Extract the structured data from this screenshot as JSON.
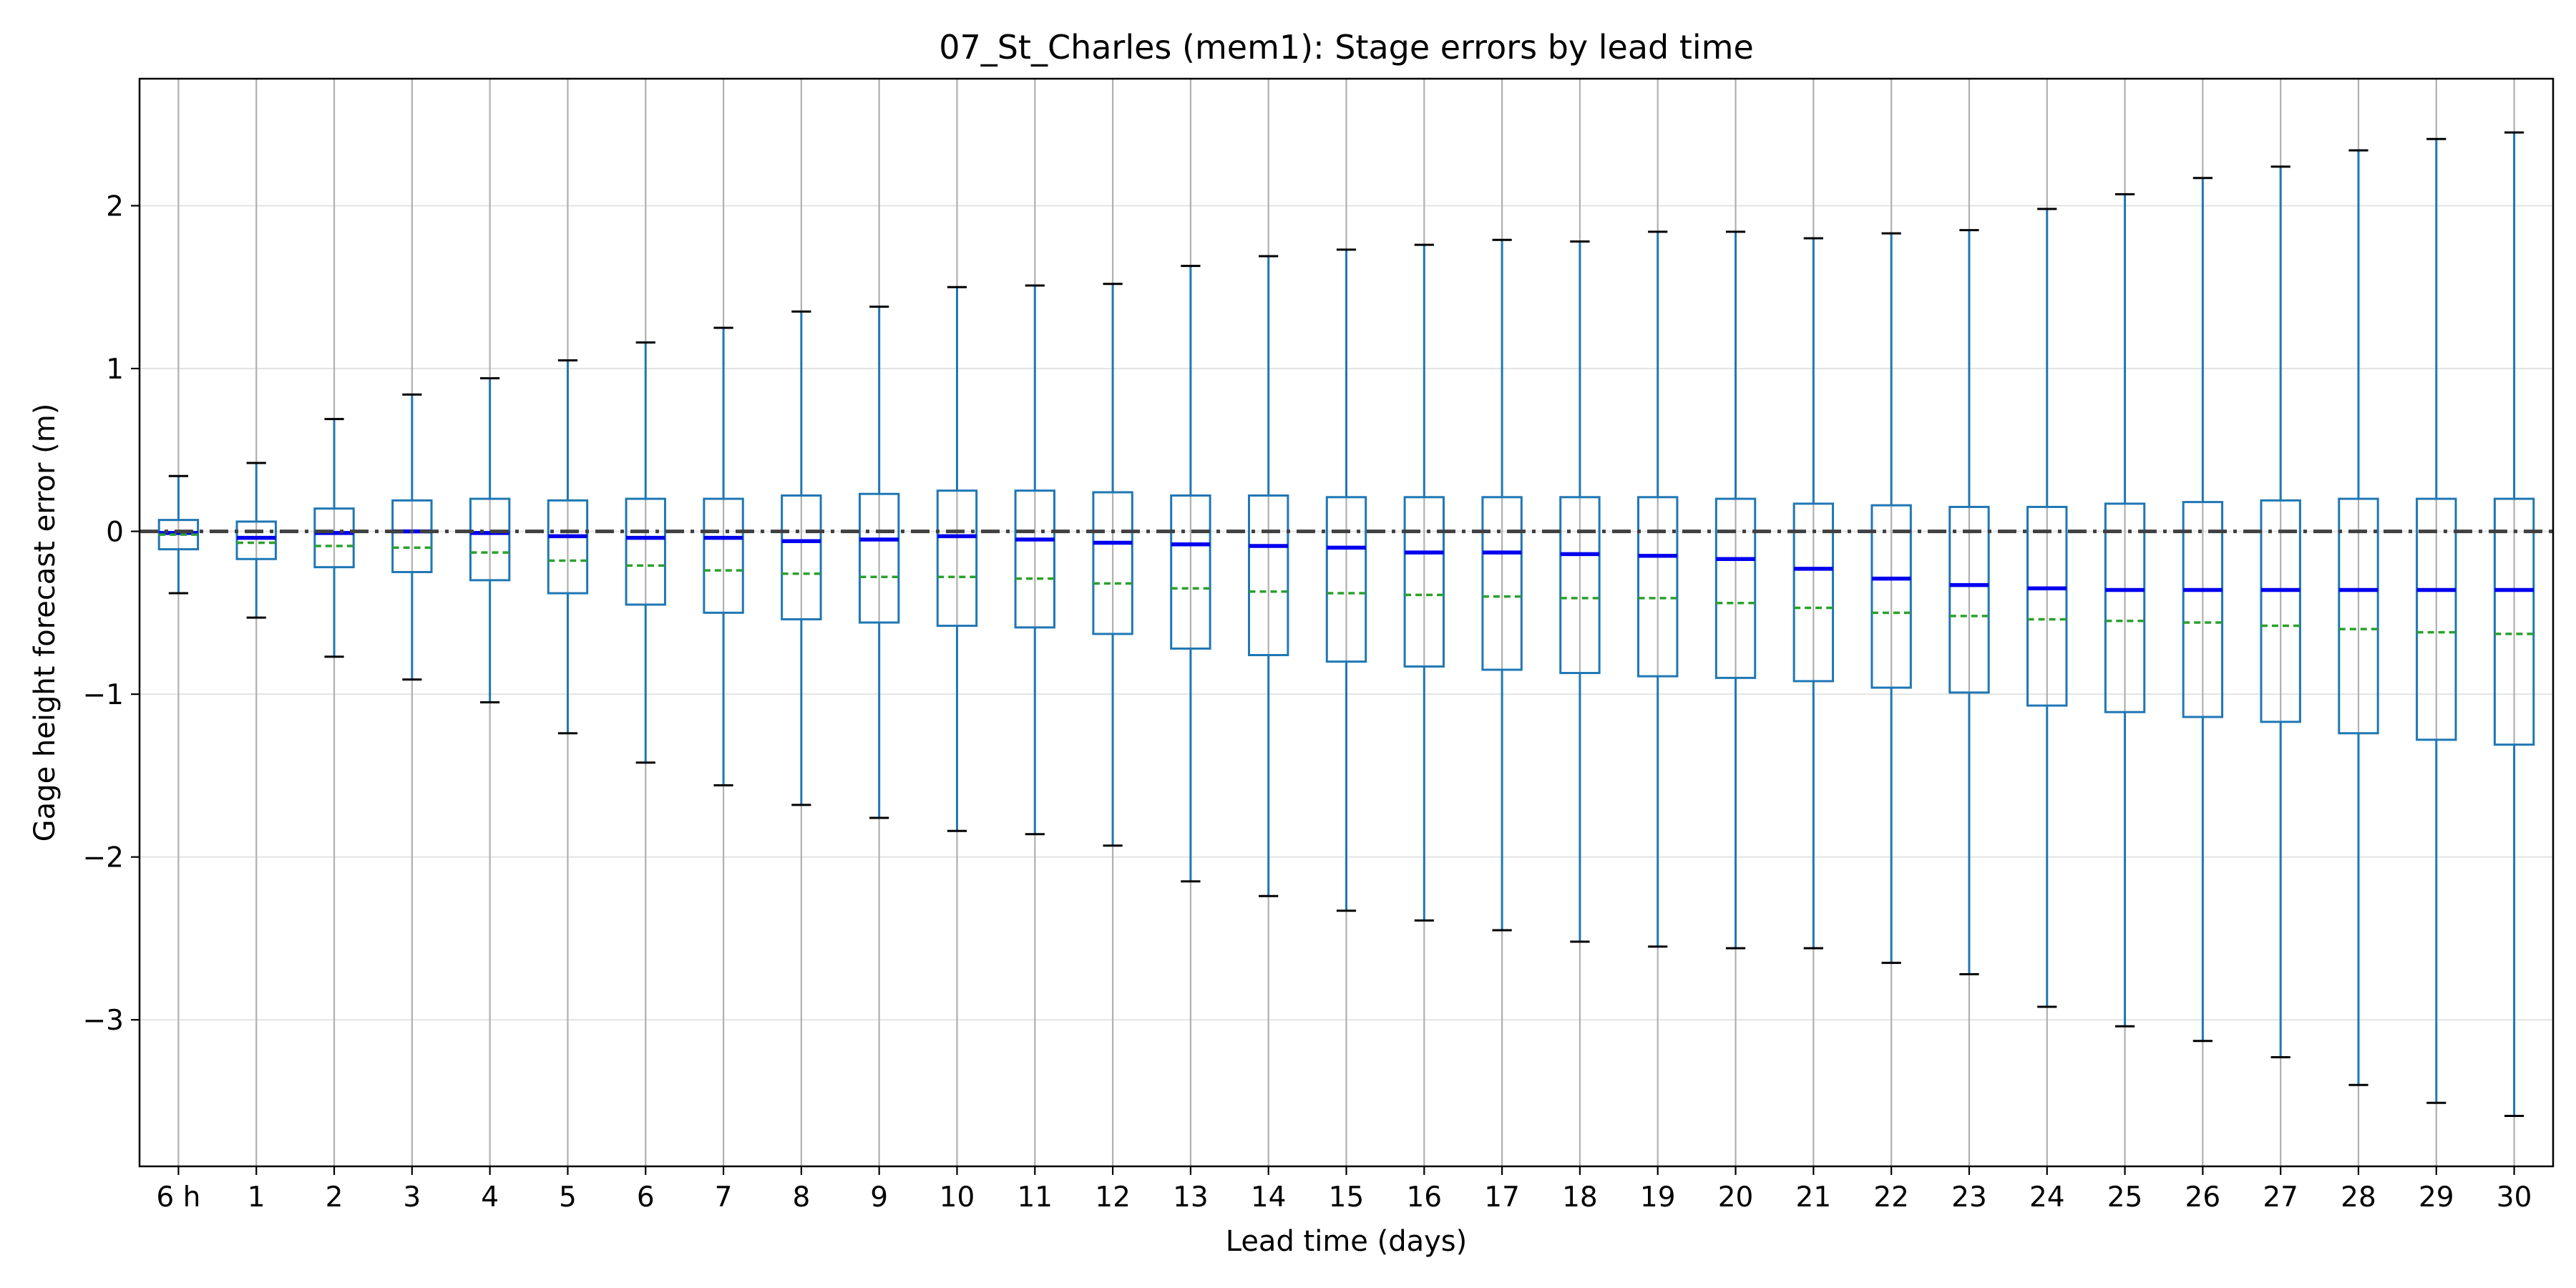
{
  "chart_data": {
    "type": "box",
    "title": "07_St_Charles (mem1): Stage errors by lead time",
    "xlabel": "Lead time (days)",
    "ylabel": "Gage height forecast error (m)",
    "ylim": [
      -3.9,
      2.78
    ],
    "yticks": [
      -3,
      -2,
      -1,
      0,
      1,
      2
    ],
    "ytick_labels": [
      "−3",
      "−2",
      "−1",
      "0",
      "1",
      "2"
    ],
    "grid": {
      "vertical": true,
      "horizontal": true
    },
    "reference_line": {
      "y": 0,
      "style": "dash-dot",
      "color": "#404040"
    },
    "categories": [
      "6 h",
      "1",
      "2",
      "3",
      "4",
      "5",
      "6",
      "7",
      "8",
      "9",
      "10",
      "11",
      "12",
      "13",
      "14",
      "15",
      "16",
      "17",
      "18",
      "19",
      "20",
      "21",
      "22",
      "23",
      "24",
      "25",
      "26",
      "27",
      "28",
      "29",
      "30"
    ],
    "boxes": [
      {
        "whislo": -0.38,
        "q1": -0.11,
        "med": -0.01,
        "mean": -0.02,
        "q3": 0.07,
        "whishi": 0.34
      },
      {
        "whislo": -0.53,
        "q1": -0.17,
        "med": -0.04,
        "mean": -0.07,
        "q3": 0.06,
        "whishi": 0.42
      },
      {
        "whislo": -0.77,
        "q1": -0.22,
        "med": -0.01,
        "mean": -0.09,
        "q3": 0.14,
        "whishi": 0.69
      },
      {
        "whislo": -0.91,
        "q1": -0.25,
        "med": 0.0,
        "mean": -0.1,
        "q3": 0.19,
        "whishi": 0.84
      },
      {
        "whislo": -1.05,
        "q1": -0.3,
        "med": -0.01,
        "mean": -0.13,
        "q3": 0.2,
        "whishi": 0.94
      },
      {
        "whislo": -1.24,
        "q1": -0.38,
        "med": -0.03,
        "mean": -0.18,
        "q3": 0.19,
        "whishi": 1.05
      },
      {
        "whislo": -1.42,
        "q1": -0.45,
        "med": -0.04,
        "mean": -0.21,
        "q3": 0.2,
        "whishi": 1.16
      },
      {
        "whislo": -1.56,
        "q1": -0.5,
        "med": -0.04,
        "mean": -0.24,
        "q3": 0.2,
        "whishi": 1.25
      },
      {
        "whislo": -1.68,
        "q1": -0.54,
        "med": -0.06,
        "mean": -0.26,
        "q3": 0.22,
        "whishi": 1.35
      },
      {
        "whislo": -1.76,
        "q1": -0.56,
        "med": -0.05,
        "mean": -0.28,
        "q3": 0.23,
        "whishi": 1.38
      },
      {
        "whislo": -1.84,
        "q1": -0.58,
        "med": -0.03,
        "mean": -0.28,
        "q3": 0.25,
        "whishi": 1.5
      },
      {
        "whislo": -1.86,
        "q1": -0.59,
        "med": -0.05,
        "mean": -0.29,
        "q3": 0.25,
        "whishi": 1.51
      },
      {
        "whislo": -1.93,
        "q1": -0.63,
        "med": -0.07,
        "mean": -0.32,
        "q3": 0.24,
        "whishi": 1.52
      },
      {
        "whislo": -2.15,
        "q1": -0.72,
        "med": -0.08,
        "mean": -0.35,
        "q3": 0.22,
        "whishi": 1.63
      },
      {
        "whislo": -2.24,
        "q1": -0.76,
        "med": -0.09,
        "mean": -0.37,
        "q3": 0.22,
        "whishi": 1.69
      },
      {
        "whislo": -2.33,
        "q1": -0.8,
        "med": -0.1,
        "mean": -0.38,
        "q3": 0.21,
        "whishi": 1.73
      },
      {
        "whislo": -2.39,
        "q1": -0.83,
        "med": -0.13,
        "mean": -0.39,
        "q3": 0.21,
        "whishi": 1.76
      },
      {
        "whislo": -2.45,
        "q1": -0.85,
        "med": -0.13,
        "mean": -0.4,
        "q3": 0.21,
        "whishi": 1.79
      },
      {
        "whislo": -2.52,
        "q1": -0.87,
        "med": -0.14,
        "mean": -0.41,
        "q3": 0.21,
        "whishi": 1.78
      },
      {
        "whislo": -2.55,
        "q1": -0.89,
        "med": -0.15,
        "mean": -0.41,
        "q3": 0.21,
        "whishi": 1.84
      },
      {
        "whislo": -2.56,
        "q1": -0.9,
        "med": -0.17,
        "mean": -0.44,
        "q3": 0.2,
        "whishi": 1.84
      },
      {
        "whislo": -2.56,
        "q1": -0.92,
        "med": -0.23,
        "mean": -0.47,
        "q3": 0.17,
        "whishi": 1.8
      },
      {
        "whislo": -2.65,
        "q1": -0.96,
        "med": -0.29,
        "mean": -0.5,
        "q3": 0.16,
        "whishi": 1.83
      },
      {
        "whislo": -2.72,
        "q1": -0.99,
        "med": -0.33,
        "mean": -0.52,
        "q3": 0.15,
        "whishi": 1.85
      },
      {
        "whislo": -2.92,
        "q1": -1.07,
        "med": -0.35,
        "mean": -0.54,
        "q3": 0.15,
        "whishi": 1.98
      },
      {
        "whislo": -3.04,
        "q1": -1.11,
        "med": -0.36,
        "mean": -0.55,
        "q3": 0.17,
        "whishi": 2.07
      },
      {
        "whislo": -3.13,
        "q1": -1.14,
        "med": -0.36,
        "mean": -0.56,
        "q3": 0.18,
        "whishi": 2.17
      },
      {
        "whislo": -3.23,
        "q1": -1.17,
        "med": -0.36,
        "mean": -0.58,
        "q3": 0.19,
        "whishi": 2.24
      },
      {
        "whislo": -3.4,
        "q1": -1.24,
        "med": -0.36,
        "mean": -0.6,
        "q3": 0.2,
        "whishi": 2.34
      },
      {
        "whislo": -3.51,
        "q1": -1.28,
        "med": -0.36,
        "mean": -0.62,
        "q3": 0.2,
        "whishi": 2.41
      },
      {
        "whislo": -3.59,
        "q1": -1.31,
        "med": -0.36,
        "mean": -0.63,
        "q3": 0.2,
        "whishi": 2.45
      }
    ],
    "colors": {
      "box": "#1f77b4",
      "median": "#0000ee",
      "mean": "#2ca02c",
      "caps": "#000000",
      "grid": "#b0b0b0",
      "reference": "#404040",
      "frame": "#000000"
    }
  }
}
